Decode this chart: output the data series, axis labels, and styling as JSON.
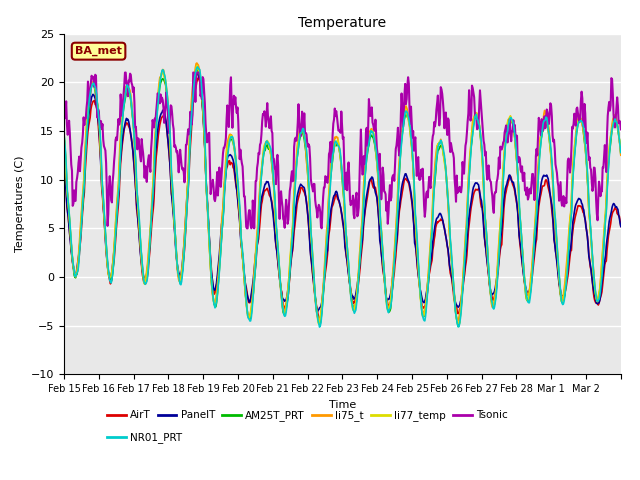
{
  "title": "Temperature",
  "xlabel": "Time",
  "ylabel": "Temperatures (C)",
  "ylim": [
    -10,
    25
  ],
  "background_color": "#ffffff",
  "plot_bg_color": "#e8e8e8",
  "annotation_text": "BA_met",
  "annotation_bg": "#ffff99",
  "annotation_border": "#8b0000",
  "x_tick_labels": [
    "Feb 15",
    "Feb 16",
    "Feb 17",
    "Feb 18",
    "Feb 19",
    "Feb 20",
    "Feb 21",
    "Feb 22",
    "Feb 23",
    "Feb 24",
    "Feb 25",
    "Feb 26",
    "Feb 27",
    "Feb 28",
    "Mar 1",
    "Mar 2"
  ],
  "series": [
    {
      "name": "AirT",
      "color": "#dd0000",
      "lw": 1.2
    },
    {
      "name": "PanelT",
      "color": "#000099",
      "lw": 1.2
    },
    {
      "name": "AM25T_PRT",
      "color": "#00bb00",
      "lw": 1.2
    },
    {
      "name": "li75_t",
      "color": "#ff9900",
      "lw": 1.2
    },
    {
      "name": "li77_temp",
      "color": "#dddd00",
      "lw": 1.2
    },
    {
      "name": "Tsonic",
      "color": "#aa00aa",
      "lw": 1.5
    },
    {
      "name": "NR01_PRT",
      "color": "#00cccc",
      "lw": 1.2
    }
  ]
}
